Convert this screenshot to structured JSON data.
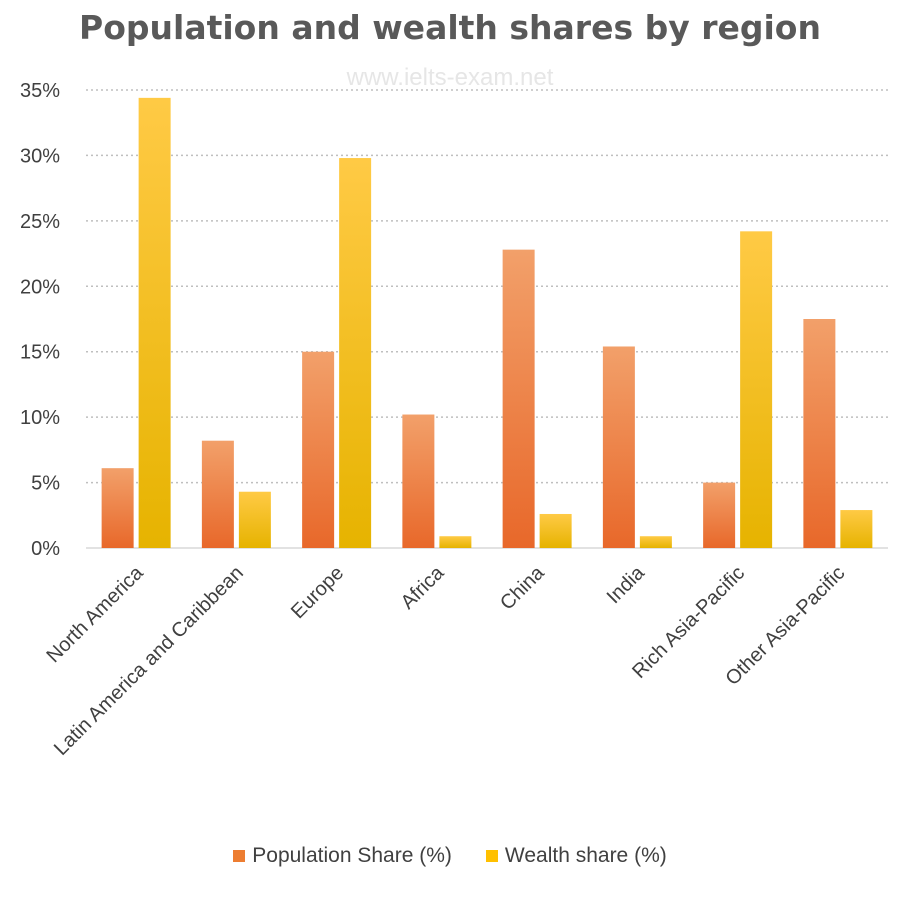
{
  "chart_data": {
    "type": "bar",
    "title": "Population and wealth shares by region",
    "watermark": "www.ielts-exam.net",
    "categories": [
      "North America",
      "Latin America and Caribbean",
      "Europe",
      "Africa",
      "China",
      "India",
      "Rich Asia-Pacific",
      "Other Asia-Pacific"
    ],
    "series": [
      {
        "name": "Population Share (%)",
        "values": [
          6.1,
          8.2,
          15.0,
          10.2,
          22.8,
          15.4,
          5.0,
          17.5
        ],
        "color": "#ed7d31"
      },
      {
        "name": "Wealth share (%)",
        "values": [
          34.4,
          4.3,
          29.8,
          0.9,
          2.6,
          0.9,
          24.2,
          2.9
        ],
        "color": "#ffc000"
      }
    ],
    "ylim": [
      0,
      35
    ],
    "yticks": [
      "0%",
      "5%",
      "10%",
      "15%",
      "20%",
      "25%",
      "30%",
      "35%"
    ],
    "grid": true,
    "legend_position": "bottom"
  }
}
